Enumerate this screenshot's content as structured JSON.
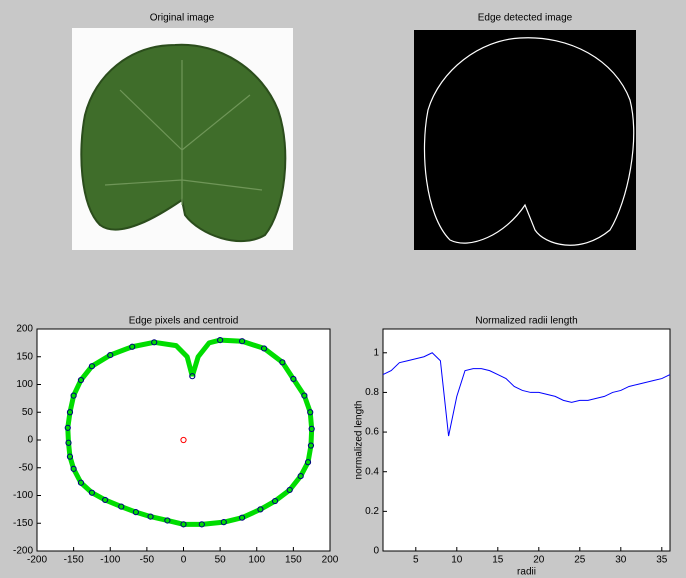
{
  "chart_data": [
    {
      "type": "image",
      "title": "Original image"
    },
    {
      "type": "image",
      "title": "Edge detected image"
    },
    {
      "type": "scatter",
      "title": "Edge pixels and centroid",
      "xlim": [
        -200,
        200
      ],
      "ylim": [
        -200,
        200
      ],
      "xticks": [
        -200,
        -150,
        -100,
        -50,
        0,
        50,
        100,
        150,
        200
      ],
      "yticks": [
        -200,
        -150,
        -100,
        -50,
        0,
        50,
        100,
        150,
        200
      ],
      "series": [
        {
          "color": "#00dd00",
          "mode": "line",
          "x": [
            12,
            5,
            -10,
            -40,
            -70,
            -100,
            -125,
            -140,
            -150,
            -155,
            -158,
            -157,
            -155,
            -150,
            -140,
            -125,
            -107,
            -85,
            -65,
            -45,
            -22,
            0,
            25,
            55,
            80,
            105,
            125,
            145,
            160,
            170,
            174,
            175,
            173,
            165,
            150,
            135,
            110,
            80,
            50,
            35,
            20,
            12
          ],
          "y": [
            115,
            150,
            170,
            176,
            168,
            153,
            133,
            108,
            80,
            50,
            22,
            -5,
            -30,
            -52,
            -77,
            -95,
            -108,
            -120,
            -130,
            -138,
            -145,
            -152,
            -152,
            -148,
            -140,
            -125,
            -110,
            -90,
            -65,
            -40,
            -10,
            20,
            50,
            80,
            110,
            140,
            165,
            178,
            180,
            175,
            150,
            115
          ]
        },
        {
          "color": "#000080",
          "mode": "markers",
          "x": [
            -40,
            -70,
            -100,
            -125,
            -140,
            -150,
            -155,
            -158,
            -157,
            -155,
            -150,
            -140,
            -125,
            -107,
            -85,
            -65,
            -45,
            -22,
            0,
            25,
            55,
            80,
            105,
            125,
            145,
            160,
            170,
            174,
            175,
            173,
            165,
            150,
            135,
            110,
            80,
            50,
            12
          ],
          "y": [
            176,
            168,
            153,
            133,
            108,
            80,
            50,
            22,
            -5,
            -30,
            -52,
            -77,
            -95,
            -108,
            -120,
            -130,
            -138,
            -145,
            -152,
            -152,
            -148,
            -140,
            -125,
            -110,
            -90,
            -65,
            -40,
            -10,
            20,
            50,
            80,
            110,
            140,
            165,
            178,
            180,
            115
          ]
        },
        {
          "color": "#ff0000",
          "mode": "markers",
          "x": [
            0
          ],
          "y": [
            0
          ]
        }
      ]
    },
    {
      "type": "line",
      "title": "Normalized radii length",
      "xlabel": "radii",
      "ylabel": "normalized length",
      "xlim": [
        1,
        36
      ],
      "ylim": [
        0,
        1.12
      ],
      "xticks": [
        5,
        10,
        15,
        20,
        25,
        30,
        35
      ],
      "yticks": [
        0,
        0.2,
        0.4,
        0.6,
        0.8,
        1
      ],
      "x": [
        1,
        2,
        3,
        4,
        5,
        6,
        7,
        8,
        9,
        10,
        11,
        12,
        13,
        14,
        15,
        16,
        17,
        18,
        19,
        20,
        21,
        22,
        23,
        24,
        25,
        26,
        27,
        28,
        29,
        30,
        31,
        32,
        33,
        34,
        35,
        36
      ],
      "series": [
        {
          "color": "#0000ff",
          "values": [
            0.89,
            0.91,
            0.95,
            0.96,
            0.97,
            0.98,
            1.0,
            0.96,
            0.58,
            0.78,
            0.91,
            0.92,
            0.92,
            0.91,
            0.89,
            0.87,
            0.83,
            0.81,
            0.8,
            0.8,
            0.79,
            0.78,
            0.76,
            0.75,
            0.76,
            0.76,
            0.77,
            0.78,
            0.8,
            0.81,
            0.83,
            0.84,
            0.85,
            0.86,
            0.87,
            0.89
          ]
        }
      ]
    }
  ]
}
